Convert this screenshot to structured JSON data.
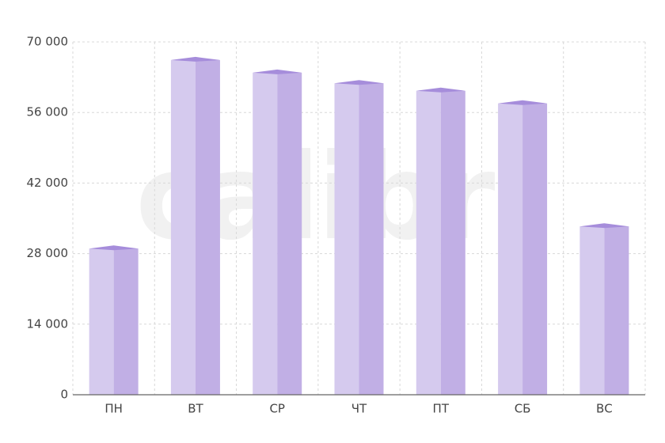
{
  "chart_data": {
    "type": "bar3d",
    "watermark": "calibri",
    "categories": [
      "ПН",
      "ВТ",
      "СР",
      "ЧТ",
      "ПТ",
      "СБ",
      "ВС"
    ],
    "values": [
      29000,
      66400,
      63900,
      61800,
      60300,
      57800,
      33400
    ],
    "colors": {
      "front": "#d5caee",
      "side": "#c1afe5",
      "top": "#a68ddb"
    },
    "ylim": [
      0,
      70000
    ],
    "yticks": [
      0,
      {
        "value": 14000,
        "label": "14 000"
      },
      {
        "value": 28000,
        "label": "28 000"
      },
      {
        "value": 42000,
        "label": "42 000"
      },
      {
        "value": 56000,
        "label": "56 000"
      },
      {
        "value": 70000,
        "label": "70 000"
      }
    ],
    "grid": true
  }
}
